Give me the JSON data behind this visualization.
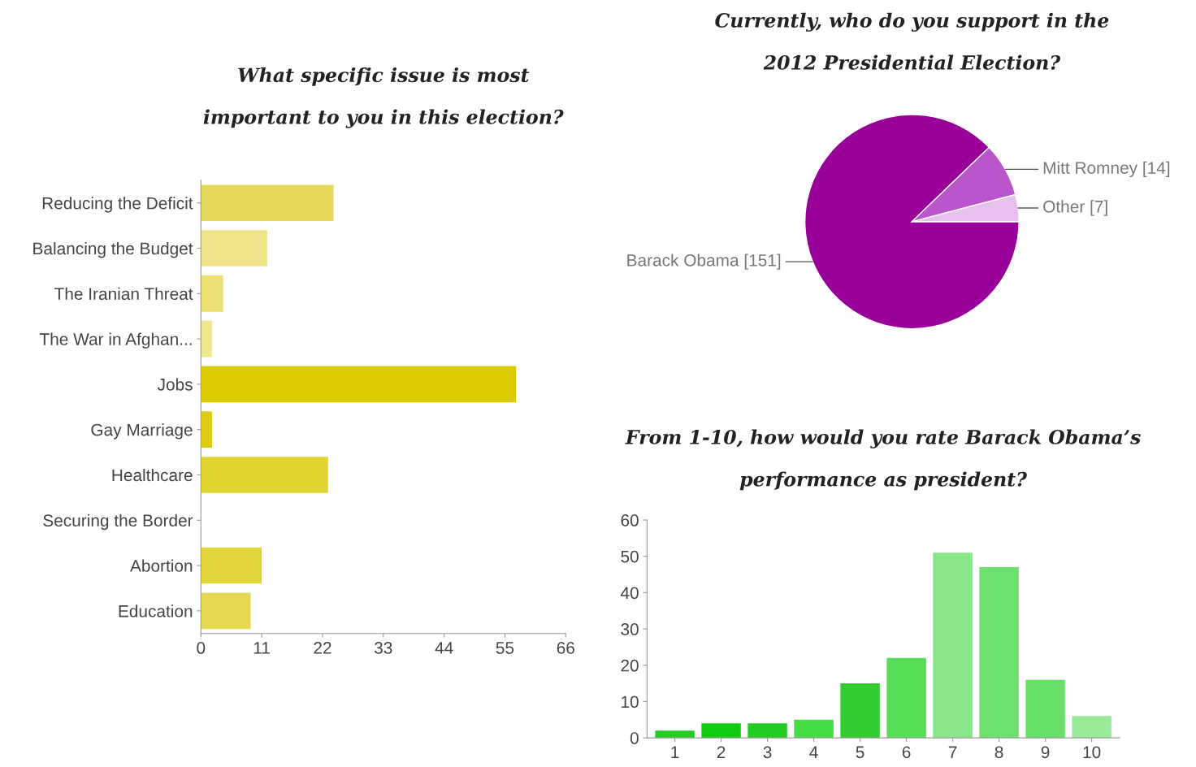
{
  "chart_data": [
    {
      "type": "bar",
      "orientation": "horizontal",
      "title": "What specific issue is most\nimportant to you in this election?",
      "categories": [
        "Reducing the Deficit",
        "Balancing the Budget",
        "The Iranian Threat",
        "The War in Afghan...",
        "Jobs",
        "Gay Marriage",
        "Healthcare",
        "Securing the Border",
        "Abortion",
        "Education"
      ],
      "values": [
        24,
        12,
        4,
        2,
        57,
        2,
        23,
        0,
        11,
        9
      ],
      "colors": [
        "#e6d85a",
        "#efe48a",
        "#ebe070",
        "#f0e890",
        "#dccb00",
        "#dccb10",
        "#e2d430",
        "#e6d850",
        "#e2d43a",
        "#e6d850"
      ],
      "xlim": [
        0,
        66
      ],
      "xticks": [
        0,
        11,
        22,
        33,
        44,
        55,
        66
      ],
      "grid": false,
      "legend": false
    },
    {
      "type": "pie",
      "title": "Currently, who do you support in the\n2012 Presidential Election?",
      "categories": [
        "Barack Obama",
        "Mitt Romney",
        "Other"
      ],
      "values": [
        151,
        14,
        7
      ],
      "value_labels": [
        "[151]",
        "[14]",
        "[7]"
      ],
      "colors": [
        "#990099",
        "#bb55cc",
        "#e8c0ee"
      ],
      "legend": false
    },
    {
      "type": "bar",
      "title": "From 1-10, how would you rate Barack Obama’s\nperformance as president?",
      "categories": [
        "1",
        "2",
        "3",
        "4",
        "5",
        "6",
        "7",
        "8",
        "9",
        "10"
      ],
      "values": [
        2,
        4,
        4,
        5,
        15,
        22,
        51,
        47,
        16,
        6
      ],
      "colors": [
        "#22cc22",
        "#11cc11",
        "#22cc22",
        "#44dd44",
        "#33cc33",
        "#55dd55",
        "#88e688",
        "#6ee06e",
        "#66e066",
        "#99eb99"
      ],
      "ylim": [
        0,
        60
      ],
      "yticks": [
        0,
        10,
        20,
        30,
        40,
        50,
        60
      ],
      "grid": false,
      "legend": false
    }
  ]
}
